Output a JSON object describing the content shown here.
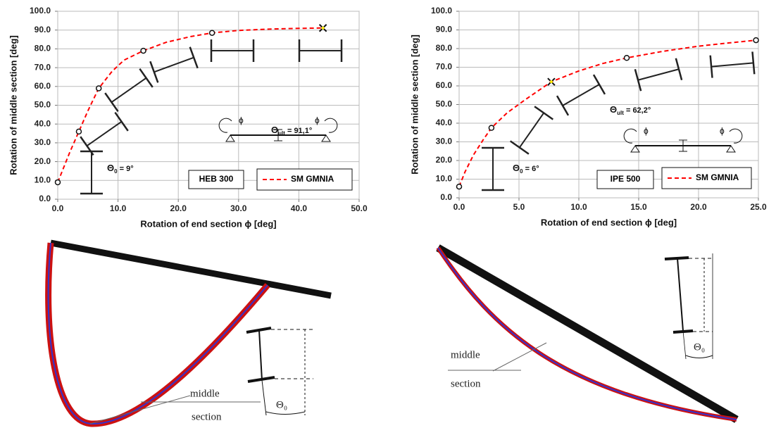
{
  "chart_data": [
    {
      "type": "line",
      "xlabel": "Rotation of end section  ϕ  [deg]",
      "ylabel": "Rotation of middle section  [deg]",
      "xlim": [
        0,
        50
      ],
      "xticks": [
        {
          "value": 0,
          "label": "0.0"
        },
        {
          "value": 10,
          "label": "10.0"
        },
        {
          "value": 20,
          "label": "20.0"
        },
        {
          "value": 30,
          "label": "30.0"
        },
        {
          "value": 40,
          "label": "40.0"
        },
        {
          "value": 50,
          "label": "50.0"
        }
      ],
      "ylim": [
        0,
        100
      ],
      "yticks": [
        {
          "value": 0,
          "label": "0.0"
        },
        {
          "value": 10,
          "label": "10.0"
        },
        {
          "value": 20,
          "label": "20.0"
        },
        {
          "value": 30,
          "label": "30.0"
        },
        {
          "value": 40,
          "label": "40.0"
        },
        {
          "value": 50,
          "label": "50.0"
        },
        {
          "value": 60,
          "label": "60.0"
        },
        {
          "value": 70,
          "label": "70.0"
        },
        {
          "value": 80,
          "label": "80.0"
        },
        {
          "value": 90,
          "label": "90.0"
        },
        {
          "value": 100,
          "label": "100.0"
        }
      ],
      "grid": true,
      "legend": "lower right",
      "series": [
        {
          "name": "SM GMNIA",
          "color": "#ff0000",
          "dashed": true,
          "x": [
            0,
            1,
            2,
            3.5,
            5,
            6.8,
            9,
            11,
            14.2,
            18,
            22,
            25.6,
            30,
            35,
            40,
            44
          ],
          "values": [
            9,
            17,
            25,
            36,
            47,
            59,
            68,
            74,
            79,
            83.5,
            86.5,
            88.5,
            89.8,
            90.5,
            90.9,
            91.1
          ]
        }
      ],
      "points": {
        "x": [
          0,
          3.5,
          6.8,
          14.2,
          25.6
        ],
        "values": [
          9,
          36,
          59,
          79,
          88.5
        ]
      },
      "ultimate": {
        "x": 44,
        "value": 91.1
      },
      "section": "HEB 300",
      "theta0": {
        "symbol": "Θ",
        "sub": "0",
        "text": " = 9°"
      },
      "theta_ult": {
        "symbol": "Θ",
        "sub": "ult",
        "text": " = 91,1°"
      },
      "phi": "ϕ"
    },
    {
      "type": "line",
      "xlabel": "Rotation of end section  ϕ  [deg]",
      "ylabel": "Rotation of middle section  [deg]",
      "xlim": [
        0,
        25
      ],
      "xticks": [
        {
          "value": 0,
          "label": "0.0"
        },
        {
          "value": 5,
          "label": "5.0"
        },
        {
          "value": 10,
          "label": "10.0"
        },
        {
          "value": 15,
          "label": "15.0"
        },
        {
          "value": 20,
          "label": "20.0"
        },
        {
          "value": 25,
          "label": "25.0"
        }
      ],
      "ylim": [
        0,
        100
      ],
      "yticks": [
        {
          "value": 0,
          "label": "0.0"
        },
        {
          "value": 10,
          "label": "10.0"
        },
        {
          "value": 20,
          "label": "20.0"
        },
        {
          "value": 30,
          "label": "30.0"
        },
        {
          "value": 40,
          "label": "40.0"
        },
        {
          "value": 50,
          "label": "50.0"
        },
        {
          "value": 60,
          "label": "60.0"
        },
        {
          "value": 70,
          "label": "70.0"
        },
        {
          "value": 80,
          "label": "80.0"
        },
        {
          "value": 90,
          "label": "90.0"
        },
        {
          "value": 100,
          "label": "100.0"
        }
      ],
      "grid": true,
      "legend": "lower right",
      "series": [
        {
          "name": "SM GMNIA",
          "color": "#ff0000",
          "dashed": true,
          "x": [
            0,
            0.5,
            1.2,
            2,
            2.7,
            4,
            5.5,
            7.7,
            10,
            12,
            14,
            17,
            20,
            22.5,
            24.8
          ],
          "values": [
            6,
            14,
            23,
            31,
            37.5,
            45.5,
            52.5,
            62.2,
            68,
            72,
            75,
            78.5,
            81.3,
            83,
            84.5
          ]
        }
      ],
      "points": {
        "x": [
          0,
          2.7,
          14,
          24.8
        ],
        "values": [
          6,
          37.5,
          75,
          84.5
        ]
      },
      "ultimate": {
        "x": 7.7,
        "value": 62.2
      },
      "section": "IPE 500",
      "theta0": {
        "symbol": "Θ",
        "sub": "0",
        "text": " = 6°"
      },
      "theta_ult": {
        "symbol": "Θ",
        "sub": "ult",
        "text": " = 62,2°"
      },
      "phi": "ϕ"
    }
  ],
  "diagrams": [
    {
      "label_1": "middle",
      "label_2": "section",
      "theta": "Θ₀"
    },
    {
      "label_1": "middle",
      "label_2": "section",
      "theta": "Θ₀"
    }
  ]
}
